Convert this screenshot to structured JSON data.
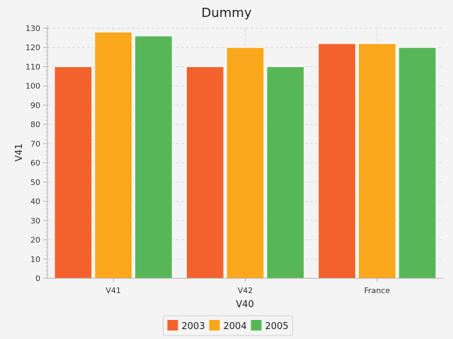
{
  "chart_data": {
    "type": "bar",
    "title": "Dummy",
    "xlabel": "V40",
    "ylabel": "V41",
    "categories": [
      "V41",
      "V42",
      "France"
    ],
    "series": [
      {
        "name": "2003",
        "color": "#f3622d",
        "values": [
          110,
          110,
          122
        ]
      },
      {
        "name": "2004",
        "color": "#fba71b",
        "values": [
          128,
          120,
          122
        ]
      },
      {
        "name": "2005",
        "color": "#57b757",
        "values": [
          126,
          110,
          120
        ]
      }
    ],
    "ylim": [
      0,
      130
    ],
    "ytick_step": 10,
    "grid": true,
    "legend": "bottom-center"
  }
}
